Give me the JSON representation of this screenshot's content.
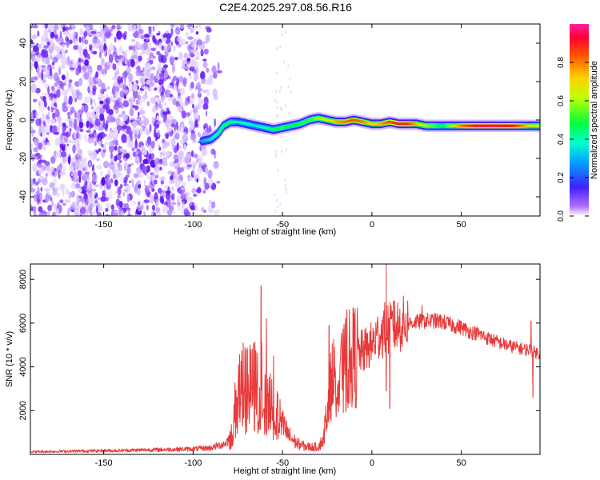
{
  "figure_title": "C2E4.2025.297.08.56.R16",
  "chart_data": [
    {
      "type": "heatmap",
      "title": "C2E4.2025.297.08.56.R16",
      "xlabel": "Height of straight line (km)",
      "ylabel": "Frequency (Hz)",
      "xlim": [
        -191,
        94
      ],
      "ylim": [
        -50,
        50
      ],
      "xticks": [
        -150,
        -100,
        -50,
        0,
        50
      ],
      "yticks": [
        -40,
        -20,
        0,
        20,
        40
      ],
      "noise_region_x": [
        -191,
        -88
      ],
      "trace": {
        "x": [
          -95,
          -90,
          -86,
          -83,
          -79,
          -75,
          -70,
          -65,
          -60,
          -55,
          -50,
          -45,
          -40,
          -35,
          -30,
          -25,
          -20,
          -15,
          -10,
          -5,
          0,
          5,
          10,
          15,
          20,
          25,
          30,
          40,
          50,
          60,
          70,
          80,
          88,
          94
        ],
        "freq": [
          -11,
          -10,
          -7,
          -3,
          -1,
          -1,
          -2,
          -3,
          -4,
          -5,
          -4,
          -3,
          -2,
          0,
          1,
          0,
          -1,
          -1,
          0,
          -1,
          -2,
          -2,
          -1,
          -2,
          -2,
          -2,
          -3,
          -3,
          -3,
          -3,
          -3,
          -3,
          -3,
          -3
        ],
        "amplitude": [
          0.3,
          0.35,
          0.4,
          0.45,
          0.45,
          0.35,
          0.4,
          0.35,
          0.4,
          0.45,
          0.5,
          0.45,
          0.5,
          0.5,
          0.6,
          0.65,
          0.75,
          0.8,
          0.85,
          0.8,
          0.7,
          0.75,
          0.85,
          0.9,
          0.9,
          0.75,
          0.6,
          0.45,
          0.8,
          0.95,
          0.95,
          0.9,
          0.7,
          0.6
        ]
      },
      "colorbar": {
        "label": "Normalized spectral amplitude",
        "ticks": [
          0.0,
          0.2,
          0.4,
          0.6,
          0.8
        ],
        "tick_labels": [
          "0.0",
          "0.2",
          "0.4",
          "0.6",
          "0.8"
        ],
        "range": [
          0,
          1
        ]
      }
    },
    {
      "type": "line",
      "xlabel": "Height of straight line (km)",
      "ylabel": "SNR (10 * v/v)",
      "xlim": [
        -191,
        94
      ],
      "ylim": [
        0,
        8700
      ],
      "xticks": [
        -150,
        -100,
        -50,
        0,
        50
      ],
      "yticks": [
        2000,
        4000,
        6000,
        8000
      ],
      "color": "#e83a3a",
      "envelope": {
        "x": [
          -191,
          -140,
          -100,
          -90,
          -82,
          -78,
          -76,
          -74,
          -70,
          -66,
          -63,
          -60,
          -56,
          -52,
          -50,
          -46,
          -42,
          -38,
          -34,
          -30,
          -27,
          -25,
          -22,
          -19,
          -15,
          -10,
          -5,
          0,
          3,
          6,
          8,
          10,
          15,
          20,
          25,
          30,
          35,
          40,
          45,
          50,
          55,
          60,
          65,
          70,
          75,
          80,
          85,
          88,
          90,
          92,
          94
        ],
        "values": [
          120,
          180,
          250,
          300,
          500,
          900,
          2400,
          3000,
          2800,
          3100,
          3000,
          3000,
          2500,
          1600,
          1300,
          800,
          500,
          380,
          330,
          350,
          700,
          2300,
          3500,
          3900,
          4100,
          4500,
          4700,
          5000,
          5400,
          5600,
          5800,
          5700,
          5900,
          6000,
          6050,
          6100,
          6100,
          6050,
          5900,
          5800,
          5600,
          5500,
          5300,
          5150,
          5000,
          4900,
          4800,
          4800,
          4700,
          4650,
          4600
        ]
      },
      "spikes": [
        {
          "x": -72,
          "value": 5100
        },
        {
          "x": -67,
          "value": 4800
        },
        {
          "x": -62,
          "value": 7700
        },
        {
          "x": -59,
          "value": 6200
        },
        {
          "x": -55,
          "value": 4500
        },
        {
          "x": -24,
          "value": 5900
        },
        {
          "x": -14,
          "value": 6600
        },
        {
          "x": 8,
          "value": 8700
        },
        {
          "x": 12,
          "value": 7000
        },
        {
          "x": 28,
          "value": 6800
        },
        {
          "x": 89,
          "value": 6100
        }
      ],
      "dips": [
        {
          "x": 10,
          "value": 2100
        },
        {
          "x": 8,
          "value": 2900
        },
        {
          "x": 90,
          "value": 2600
        }
      ]
    }
  ]
}
